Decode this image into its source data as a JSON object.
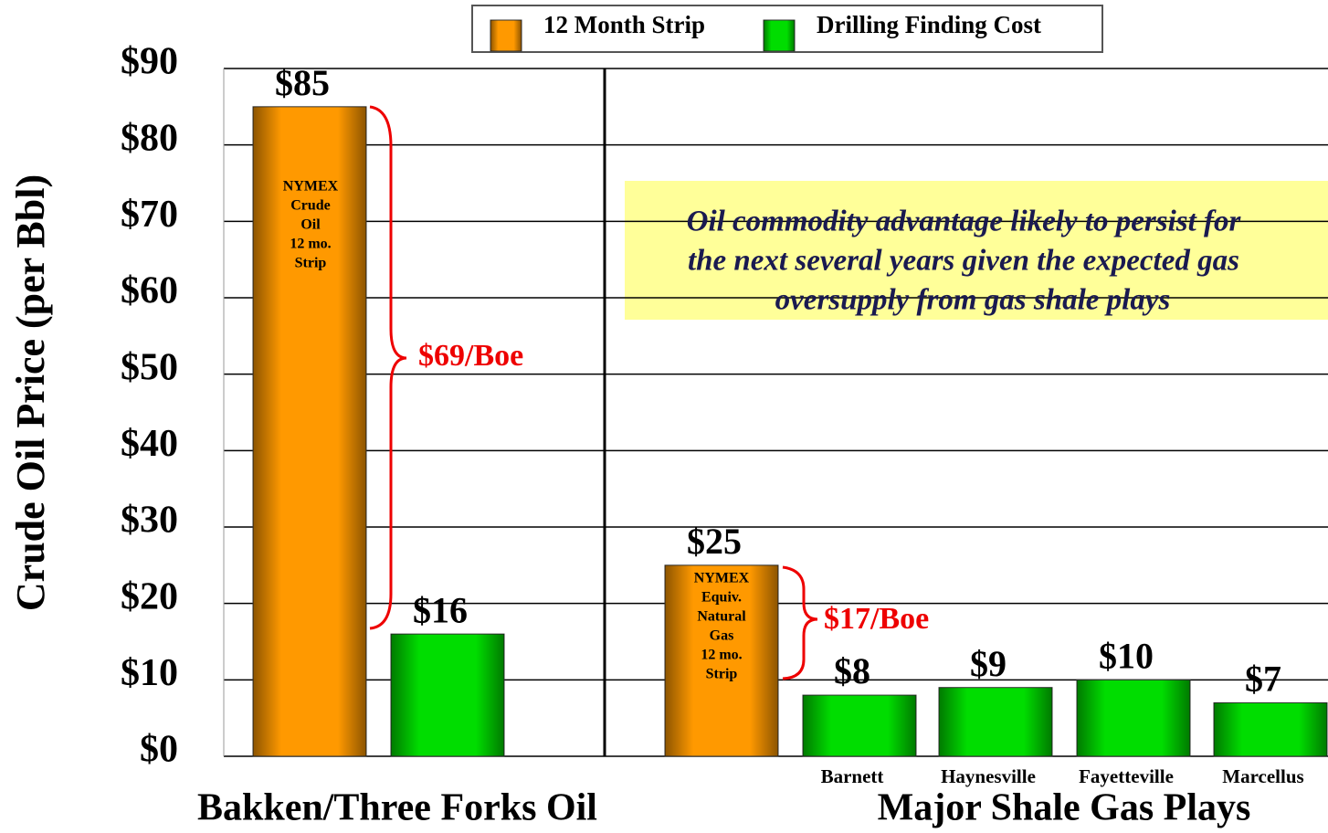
{
  "chart_data": {
    "type": "bar",
    "ylabel": "Crude Oil Price (per Bbl)",
    "ylim": [
      0,
      90
    ],
    "yticks": [
      {
        "value": 0,
        "label": "$0"
      },
      {
        "value": 10,
        "label": "$10"
      },
      {
        "value": 20,
        "label": "$20"
      },
      {
        "value": 30,
        "label": "$30"
      },
      {
        "value": 40,
        "label": "$40"
      },
      {
        "value": 50,
        "label": "$50"
      },
      {
        "value": 60,
        "label": "$60"
      },
      {
        "value": 70,
        "label": "$70"
      },
      {
        "value": 80,
        "label": "$80"
      },
      {
        "value": 90,
        "label": "$90"
      }
    ],
    "grid": true,
    "categories": [
      null,
      null,
      null,
      "Barnett",
      "Haynesville",
      "Fayetteville",
      "Marcellus"
    ],
    "group_labels": [
      "Bakken/Three Forks Oil",
      "Major Shale Gas Plays"
    ],
    "series": [
      {
        "name": "12 Month Strip",
        "color": "#ff9900",
        "values": [
          85,
          null,
          25,
          null,
          null,
          null,
          null
        ],
        "value_labels": [
          "$85",
          null,
          "$25",
          null,
          null,
          null,
          null
        ]
      },
      {
        "name": "Drilling Finding Cost",
        "color": "#00dd00",
        "values": [
          null,
          16,
          null,
          8,
          9,
          10,
          7
        ],
        "value_labels": [
          null,
          "$16",
          null,
          "$8",
          "$9",
          "$10",
          "$7"
        ]
      }
    ],
    "bar_notes": [
      [
        "NYMEX",
        "Crude",
        "Oil",
        "12 mo.",
        "Strip"
      ],
      [
        "NYMEX",
        "Equiv.",
        "Natural",
        "Gas",
        "12 mo.",
        "Strip"
      ]
    ],
    "annotations": [
      "$69/Boe",
      "$17/Boe"
    ],
    "callout": [
      "Oil commodity advantage likely to persist for",
      "the next several years given the expected gas",
      "oversupply from gas shale plays"
    ]
  }
}
